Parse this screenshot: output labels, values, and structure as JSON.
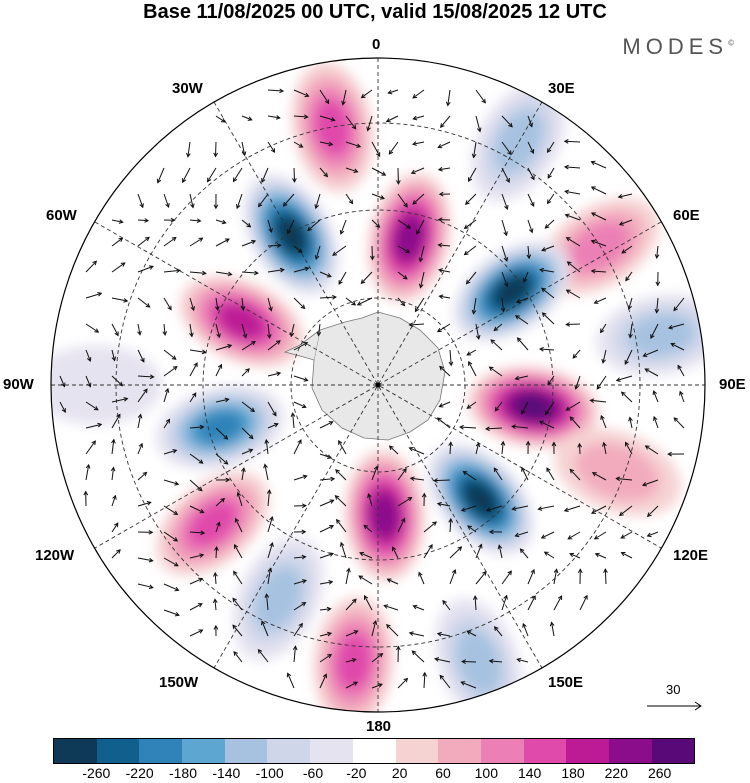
{
  "title": "Base 11/08/2025 00 UTC, valid 15/08/2025 12 UTC",
  "brand": "MODES",
  "brand_mark": "©",
  "longitude_labels": {
    "lon_0": "0",
    "lon_30e": "30E",
    "lon_60e": "60E",
    "lon_90e": "90E",
    "lon_120e": "120E",
    "lon_150e": "150E",
    "lon_180": "180",
    "lon_150w": "150W",
    "lon_120w": "120W",
    "lon_90w": "90W",
    "lon_60w": "60W",
    "lon_30w": "30W"
  },
  "reference_vector": "30",
  "colorbar": {
    "colors": [
      "#0f3a57",
      "#105f8d",
      "#2f83b9",
      "#5da6d2",
      "#a6c2e0",
      "#cfd6ea",
      "#e6e3f0",
      "#ffffff",
      "#f6d3d3",
      "#f2abbd",
      "#ec80b6",
      "#e04aab",
      "#bc1b95",
      "#8b0d8c",
      "#5a0a78"
    ],
    "tick_labels": [
      "-260",
      "-220",
      "-180",
      "-140",
      "-100",
      "-60",
      "-20",
      "20",
      "60",
      "100",
      "140",
      "180",
      "220",
      "260"
    ]
  },
  "anomaly_cells": [
    {
      "lon": 350,
      "r": 0.8,
      "v": 140
    },
    {
      "lon": 30,
      "r": 0.86,
      "v": -120
    },
    {
      "lon": 58,
      "r": 0.8,
      "v": 120
    },
    {
      "lon": 80,
      "r": 0.88,
      "v": -120
    },
    {
      "lon": 330,
      "r": 0.53,
      "v": -260
    },
    {
      "lon": 12,
      "r": 0.46,
      "v": 240
    },
    {
      "lon": 55,
      "r": 0.5,
      "v": -250
    },
    {
      "lon": 98,
      "r": 0.48,
      "v": 250
    },
    {
      "lon": 138,
      "r": 0.47,
      "v": -250
    },
    {
      "lon": 177,
      "r": 0.4,
      "v": 230
    },
    {
      "lon": 255,
      "r": 0.5,
      "v": -170
    },
    {
      "lon": 295,
      "r": 0.46,
      "v": 170
    },
    {
      "lon": 230,
      "r": 0.66,
      "v": 140
    },
    {
      "lon": 205,
      "r": 0.72,
      "v": -110
    },
    {
      "lon": 185,
      "r": 0.85,
      "v": 130
    },
    {
      "lon": 160,
      "r": 0.9,
      "v": -100
    },
    {
      "lon": 270,
      "r": 0.86,
      "v": -40
    },
    {
      "lon": 110,
      "r": 0.78,
      "v": 60
    }
  ]
}
